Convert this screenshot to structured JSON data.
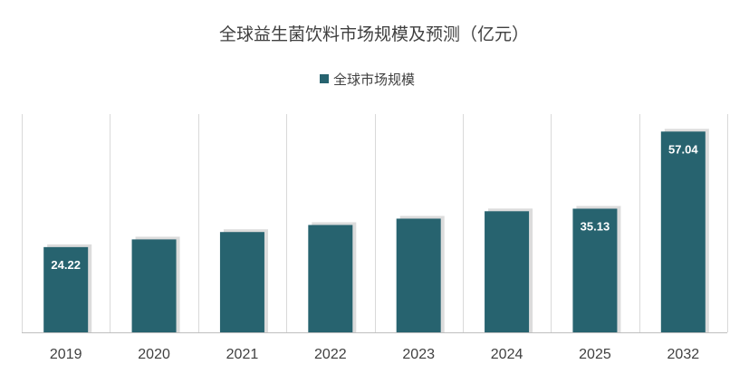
{
  "chart_data": {
    "type": "bar",
    "title": "全球益生菌饮料市场规模及预测（亿元）",
    "categories": [
      "2019",
      "2020",
      "2021",
      "2022",
      "2023",
      "2024",
      "2025",
      "2032"
    ],
    "series": [
      {
        "name": "全球市场规模",
        "values": [
          24.22,
          26.4,
          28.5,
          30.5,
          32.3,
          34.4,
          35.13,
          57.04
        ],
        "data_labels": [
          "24.22",
          "",
          "",
          "",
          "",
          "",
          "35.13",
          "57.04"
        ]
      }
    ],
    "xlabel": "",
    "ylabel": "",
    "ylim": [
      0,
      62
    ],
    "grid": "vertical",
    "legend": "top-center",
    "colors": {
      "bar": "#27636f",
      "shadow": "#bfbfbf"
    }
  }
}
